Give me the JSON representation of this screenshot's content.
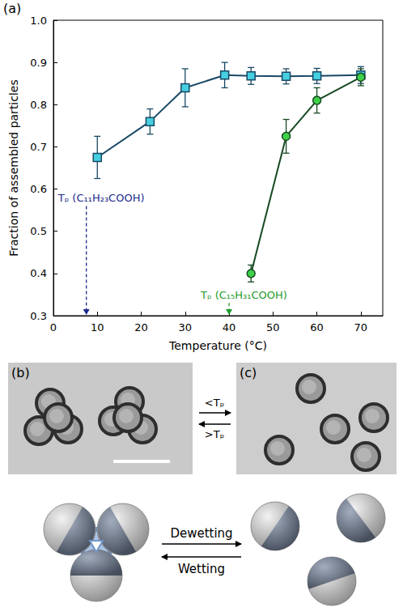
{
  "chart_data": {
    "type": "line",
    "panel_label": "(a)",
    "xlabel": "Temperature (°C)",
    "ylabel": "Fraction of assembled particles",
    "xlim": [
      0,
      75
    ],
    "xticks": [
      0,
      10,
      20,
      30,
      40,
      50,
      60,
      70
    ],
    "ylim": [
      0.3,
      1.0
    ],
    "yticks": [
      0.3,
      0.4,
      0.5,
      0.6,
      0.7,
      0.8,
      0.9,
      {
        "value": 1.0,
        "label": "1.0"
      }
    ],
    "grid": false,
    "series": [
      {
        "color": "#45cfe0",
        "marker": "square",
        "x": [
          10,
          22,
          30,
          39,
          45,
          53,
          60,
          70
        ],
        "values": [
          0.675,
          0.76,
          0.84,
          0.87,
          0.868,
          0.867,
          0.868,
          0.87
        ],
        "errors": [
          0.05,
          0.03,
          0.045,
          0.03,
          0.02,
          0.018,
          0.018,
          0.02
        ]
      },
      {
        "color": "#3fd04a",
        "marker": "circle",
        "x": [
          45,
          53,
          60,
          70
        ],
        "values": [
          0.4,
          0.725,
          0.81,
          0.865
        ],
        "errors": [
          0.02,
          0.04,
          0.03,
          0.02
        ]
      }
    ],
    "annotations": [
      {
        "text": "Tₚ (C₁₁H₂₃COOH)",
        "x": 7.5,
        "y": 0.56,
        "color": "#1a2a8c"
      },
      {
        "text": "Tₚ (C₁₅H₃₁COOH)",
        "x": 40,
        "y": 0.33,
        "color": "#1e9a2a"
      }
    ]
  },
  "panels": {
    "b": {
      "label": "(b)"
    },
    "c": {
      "label": "(c)"
    },
    "micrograph_arrows": {
      "forward": "<Tₚ",
      "backward": ">Tₚ"
    },
    "schematic_arrows": {
      "forward": "Dewetting",
      "backward": "Wetting"
    }
  }
}
